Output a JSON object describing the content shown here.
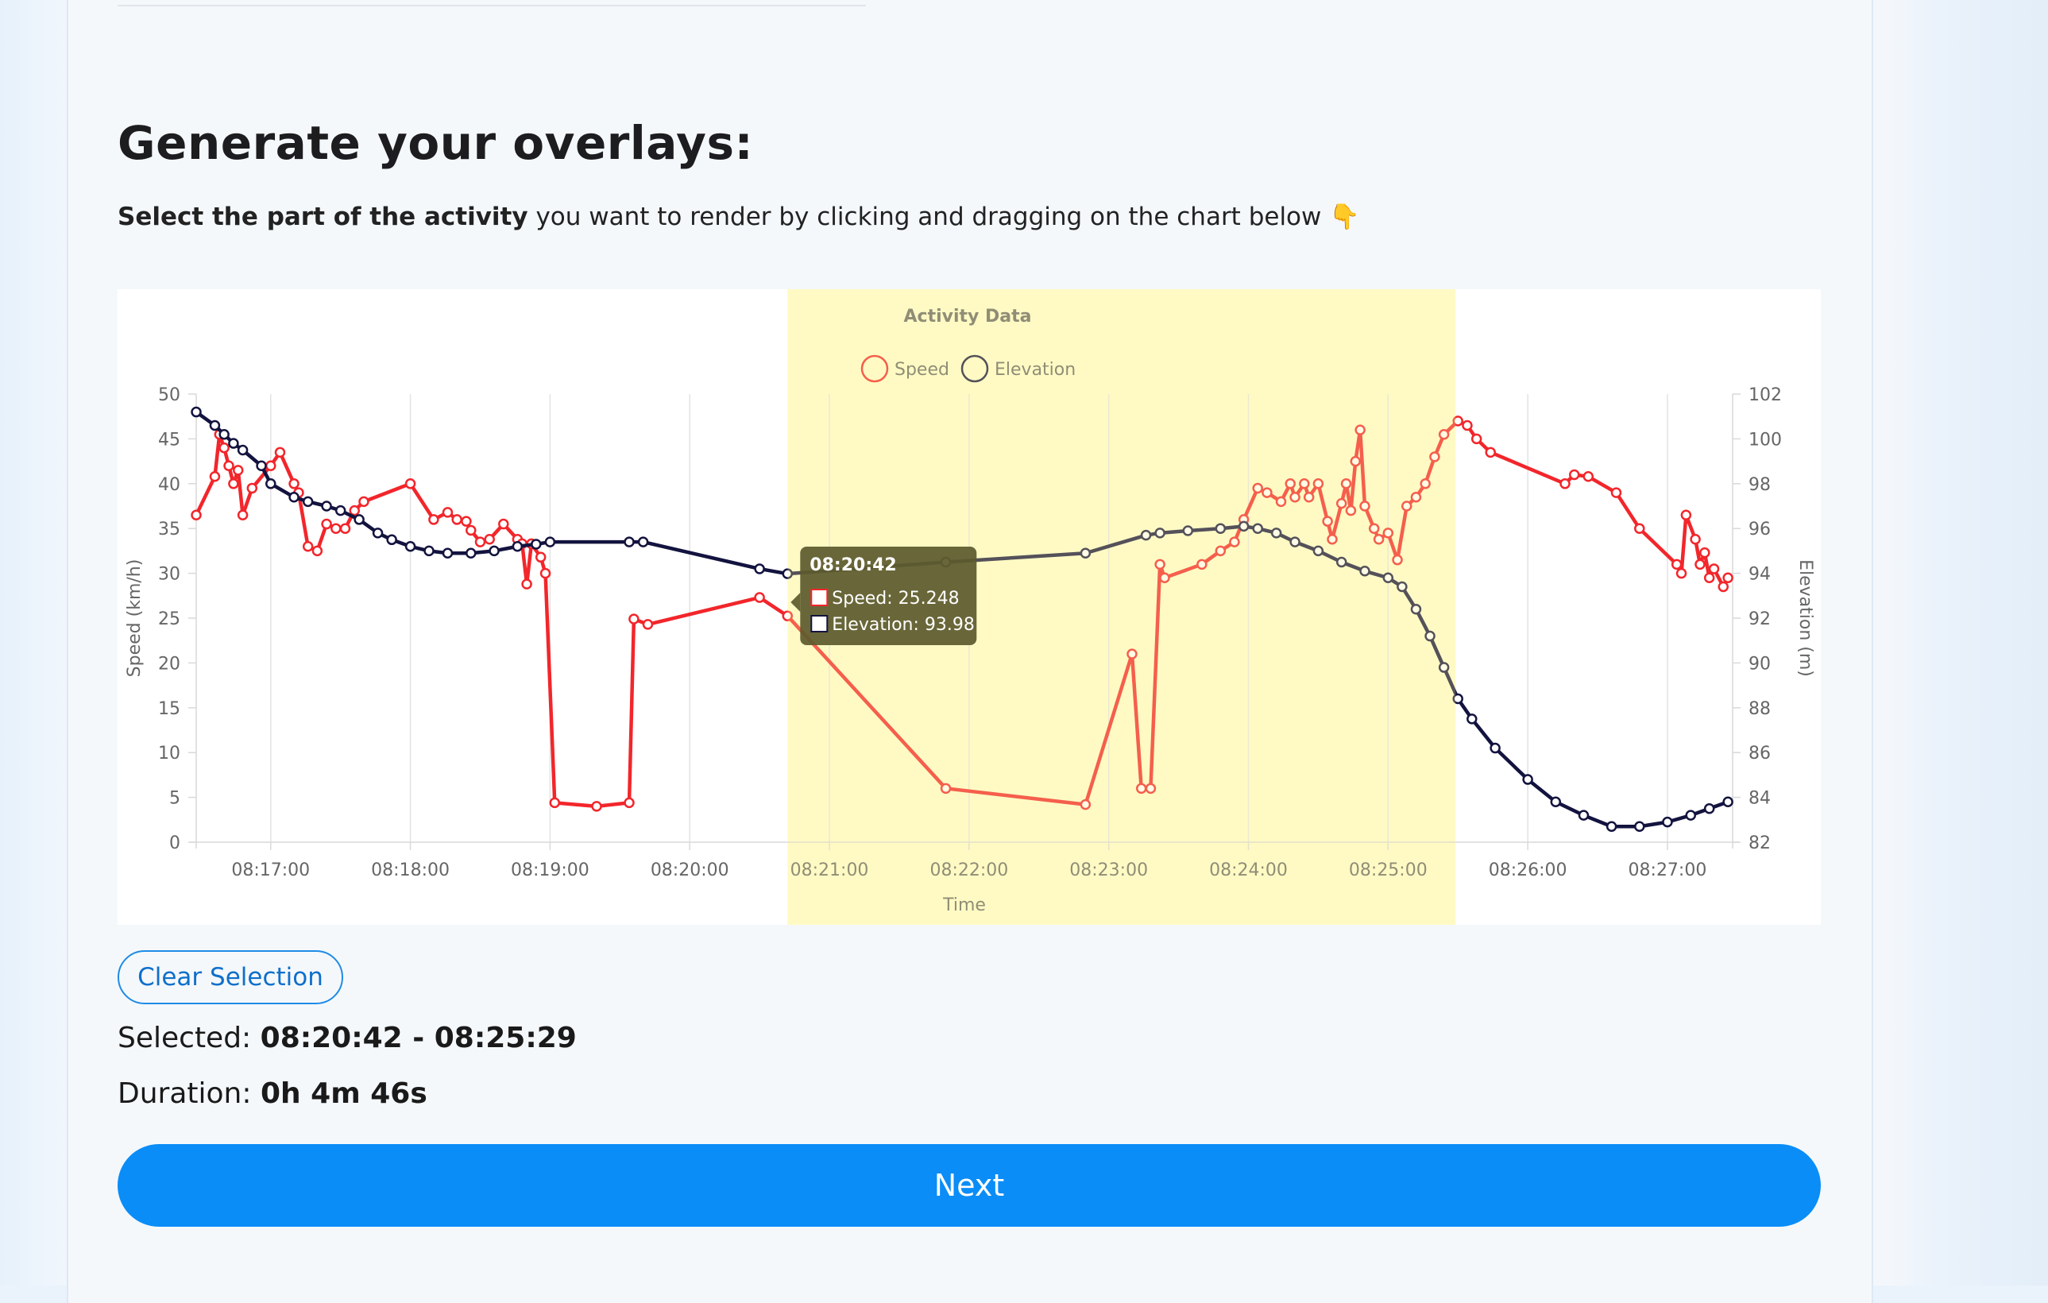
{
  "heading": "Generate your overlays:",
  "instruction": {
    "bold": "Select the part of the activity",
    "rest": " you want to render by clicking and dragging on the chart below 👇"
  },
  "chart_data": {
    "type": "line",
    "title": "Activity Data",
    "xlabel": "Time",
    "ylabel_left": "Speed (km/h)",
    "ylabel_right": "Elevation (m)",
    "x_ticks": [
      "08:17:00",
      "08:18:00",
      "08:19:00",
      "08:20:00",
      "08:21:00",
      "08:22:00",
      "08:23:00",
      "08:24:00",
      "08:25:00",
      "08:26:00",
      "08:27:00"
    ],
    "x_range": [
      "08:16:28",
      "08:27:28"
    ],
    "y_left_ticks": [
      0,
      5,
      10,
      15,
      20,
      25,
      30,
      35,
      40,
      45,
      50
    ],
    "y_right_ticks": [
      82,
      84,
      86,
      88,
      90,
      92,
      94,
      96,
      98,
      100,
      102
    ],
    "ylim_left": [
      0,
      50
    ],
    "ylim_right": [
      82,
      102
    ],
    "legend": [
      "Speed",
      "Elevation"
    ],
    "legend_position": "top",
    "grid": "vertical",
    "colors": {
      "speed": "#f2262b",
      "elevation": "#13133f",
      "selection": "#fffdd2"
    },
    "selection": {
      "start": "08:20:42",
      "end": "08:25:29"
    },
    "series": [
      {
        "name": "Speed",
        "axis": "left",
        "points": [
          [
            "08:16:28",
            36.5
          ],
          [
            "08:16:36",
            40.8
          ],
          [
            "08:16:38",
            45.5
          ],
          [
            "08:16:40",
            44.0
          ],
          [
            "08:16:42",
            42.0
          ],
          [
            "08:16:44",
            40.0
          ],
          [
            "08:16:46",
            41.5
          ],
          [
            "08:16:48",
            36.5
          ],
          [
            "08:16:52",
            39.5
          ],
          [
            "08:17:00",
            42.0
          ],
          [
            "08:17:04",
            43.5
          ],
          [
            "08:17:10",
            40.0
          ],
          [
            "08:17:12",
            39.0
          ],
          [
            "08:17:16",
            33.0
          ],
          [
            "08:17:20",
            32.5
          ],
          [
            "08:17:24",
            35.5
          ],
          [
            "08:17:28",
            35.0
          ],
          [
            "08:17:32",
            35.0
          ],
          [
            "08:17:36",
            37.0
          ],
          [
            "08:17:40",
            38.0
          ],
          [
            "08:18:00",
            40.0
          ],
          [
            "08:18:10",
            36.0
          ],
          [
            "08:18:16",
            36.8
          ],
          [
            "08:18:20",
            36.0
          ],
          [
            "08:18:24",
            35.8
          ],
          [
            "08:18:26",
            34.8
          ],
          [
            "08:18:30",
            33.5
          ],
          [
            "08:18:34",
            33.8
          ],
          [
            "08:18:40",
            35.5
          ],
          [
            "08:18:46",
            33.8
          ],
          [
            "08:18:48",
            33.3
          ],
          [
            "08:18:50",
            28.8
          ],
          [
            "08:18:52",
            33.3
          ],
          [
            "08:18:56",
            31.8
          ],
          [
            "08:18:58",
            30.0
          ],
          [
            "08:19:02",
            4.4
          ],
          [
            "08:19:20",
            4.0
          ],
          [
            "08:19:34",
            4.4
          ],
          [
            "08:19:36",
            24.9
          ],
          [
            "08:19:42",
            24.3
          ],
          [
            "08:20:30",
            27.3
          ],
          [
            "08:20:42",
            25.248
          ],
          [
            "08:21:50",
            6.0
          ],
          [
            "08:22:50",
            4.2
          ],
          [
            "08:23:10",
            21.0
          ],
          [
            "08:23:14",
            6.0
          ],
          [
            "08:23:18",
            6.0
          ],
          [
            "08:23:22",
            31.0
          ],
          [
            "08:23:24",
            29.5
          ],
          [
            "08:23:40",
            31.0
          ],
          [
            "08:23:48",
            32.5
          ],
          [
            "08:23:54",
            33.5
          ],
          [
            "08:23:58",
            36.0
          ],
          [
            "08:24:04",
            39.5
          ],
          [
            "08:24:08",
            39.0
          ],
          [
            "08:24:14",
            38.0
          ],
          [
            "08:24:18",
            40.0
          ],
          [
            "08:24:20",
            38.5
          ],
          [
            "08:24:24",
            40.0
          ],
          [
            "08:24:26",
            38.5
          ],
          [
            "08:24:30",
            40.0
          ],
          [
            "08:24:34",
            35.8
          ],
          [
            "08:24:36",
            33.8
          ],
          [
            "08:24:40",
            37.8
          ],
          [
            "08:24:42",
            40.0
          ],
          [
            "08:24:44",
            37.0
          ],
          [
            "08:24:46",
            42.5
          ],
          [
            "08:24:48",
            46.0
          ],
          [
            "08:24:50",
            37.5
          ],
          [
            "08:24:54",
            35.0
          ],
          [
            "08:24:56",
            33.8
          ],
          [
            "08:25:00",
            34.5
          ],
          [
            "08:25:04",
            31.5
          ],
          [
            "08:25:08",
            37.5
          ],
          [
            "08:25:12",
            38.5
          ],
          [
            "08:25:16",
            40.0
          ],
          [
            "08:25:20",
            43.0
          ],
          [
            "08:25:24",
            45.5
          ],
          [
            "08:25:30",
            47.0
          ],
          [
            "08:25:34",
            46.5
          ],
          [
            "08:25:38",
            45.0
          ],
          [
            "08:25:44",
            43.5
          ],
          [
            "08:26:16",
            40.0
          ],
          [
            "08:26:20",
            41.0
          ],
          [
            "08:26:26",
            40.8
          ],
          [
            "08:26:38",
            39.0
          ],
          [
            "08:26:48",
            35.0
          ],
          [
            "08:27:04",
            31.0
          ],
          [
            "08:27:06",
            30.0
          ],
          [
            "08:27:08",
            36.5
          ],
          [
            "08:27:12",
            33.8
          ],
          [
            "08:27:14",
            31.0
          ],
          [
            "08:27:16",
            32.3
          ],
          [
            "08:27:18",
            29.5
          ],
          [
            "08:27:20",
            30.5
          ],
          [
            "08:27:24",
            28.5
          ],
          [
            "08:27:26",
            29.5
          ]
        ]
      },
      {
        "name": "Elevation",
        "axis": "right",
        "points": [
          [
            "08:16:28",
            101.2
          ],
          [
            "08:16:36",
            100.6
          ],
          [
            "08:16:40",
            100.2
          ],
          [
            "08:16:44",
            99.8
          ],
          [
            "08:16:48",
            99.5
          ],
          [
            "08:16:56",
            98.8
          ],
          [
            "08:17:00",
            98.0
          ],
          [
            "08:17:10",
            97.4
          ],
          [
            "08:17:16",
            97.2
          ],
          [
            "08:17:24",
            97.0
          ],
          [
            "08:17:30",
            96.8
          ],
          [
            "08:17:38",
            96.4
          ],
          [
            "08:17:46",
            95.8
          ],
          [
            "08:17:52",
            95.5
          ],
          [
            "08:18:00",
            95.2
          ],
          [
            "08:18:08",
            95.0
          ],
          [
            "08:18:16",
            94.9
          ],
          [
            "08:18:26",
            94.9
          ],
          [
            "08:18:36",
            95.0
          ],
          [
            "08:18:46",
            95.2
          ],
          [
            "08:18:54",
            95.3
          ],
          [
            "08:19:00",
            95.4
          ],
          [
            "08:19:34",
            95.4
          ],
          [
            "08:19:40",
            95.4
          ],
          [
            "08:20:30",
            94.2
          ],
          [
            "08:20:42",
            93.98
          ],
          [
            "08:21:50",
            94.5
          ],
          [
            "08:22:50",
            94.9
          ],
          [
            "08:23:16",
            95.7
          ],
          [
            "08:23:22",
            95.8
          ],
          [
            "08:23:34",
            95.9
          ],
          [
            "08:23:48",
            96.0
          ],
          [
            "08:23:58",
            96.1
          ],
          [
            "08:24:04",
            96.0
          ],
          [
            "08:24:12",
            95.8
          ],
          [
            "08:24:20",
            95.4
          ],
          [
            "08:24:30",
            95.0
          ],
          [
            "08:24:40",
            94.5
          ],
          [
            "08:24:50",
            94.1
          ],
          [
            "08:25:00",
            93.8
          ],
          [
            "08:25:06",
            93.4
          ],
          [
            "08:25:12",
            92.4
          ],
          [
            "08:25:18",
            91.2
          ],
          [
            "08:25:24",
            89.8
          ],
          [
            "08:25:30",
            88.4
          ],
          [
            "08:25:36",
            87.5
          ],
          [
            "08:25:46",
            86.2
          ],
          [
            "08:26:00",
            84.8
          ],
          [
            "08:26:12",
            83.8
          ],
          [
            "08:26:24",
            83.2
          ],
          [
            "08:26:36",
            82.7
          ],
          [
            "08:26:48",
            82.7
          ],
          [
            "08:27:00",
            82.9
          ],
          [
            "08:27:10",
            83.2
          ],
          [
            "08:27:18",
            83.5
          ],
          [
            "08:27:26",
            83.8
          ]
        ]
      }
    ],
    "tooltip": {
      "title": "08:20:42",
      "speed_label": "Speed: 25.248",
      "elevation_label": "Elevation: 93.98"
    }
  },
  "clear_button": "Clear Selection",
  "selected": {
    "label": "Selected: ",
    "value": "08:20:42 - 08:25:29"
  },
  "duration": {
    "label": "Duration: ",
    "value": "0h 4m 46s"
  },
  "next_button": "Next"
}
